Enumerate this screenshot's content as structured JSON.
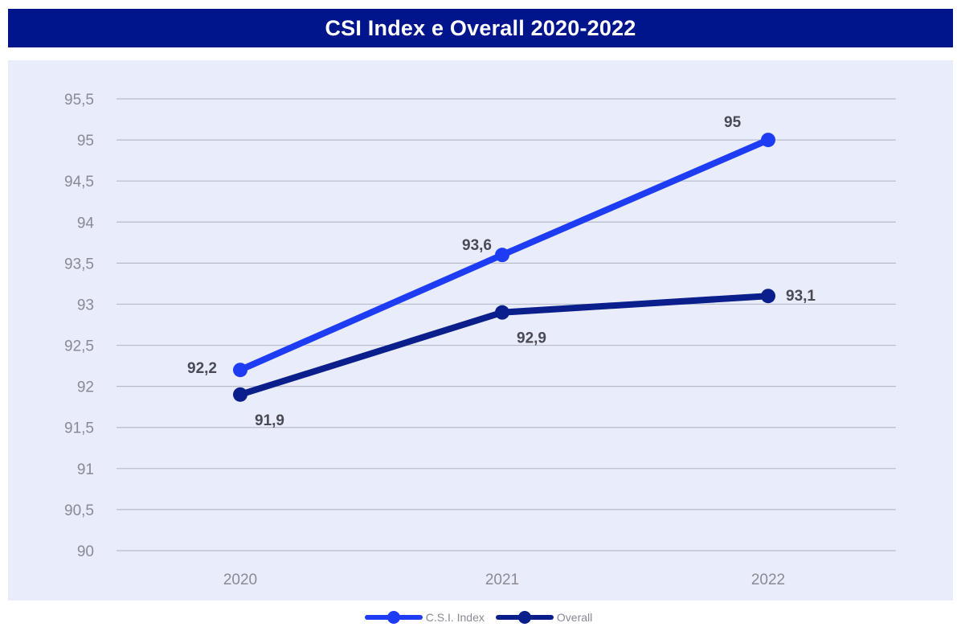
{
  "chart_data": {
    "type": "line",
    "title": "CSI Index e Overall 2020-2022",
    "categories": [
      "2020",
      "2021",
      "2022"
    ],
    "series": [
      {
        "name": "C.S.I. Index",
        "values": [
          92.2,
          93.6,
          95
        ],
        "labels": [
          "92,2",
          "93,6",
          "95"
        ],
        "color": "#1f3cf5"
      },
      {
        "name": "Overall",
        "values": [
          91.9,
          92.9,
          93.1
        ],
        "labels": [
          "91,9",
          "92,9",
          "93,1"
        ],
        "color": "#0a1e8c"
      }
    ],
    "ylim": [
      90,
      95.5
    ],
    "yticks": [
      90,
      90.5,
      91,
      91.5,
      92,
      92.5,
      93,
      93.5,
      94,
      94.5,
      95,
      95.5
    ],
    "ytick_labels": [
      "90",
      "90,5",
      "91",
      "91,5",
      "92",
      "92,5",
      "93",
      "93,5",
      "94",
      "94,5",
      "95",
      "95,5"
    ],
    "grid": true,
    "legend": "bottom",
    "colors": {
      "title_background": "#00148c",
      "plot_background": "#e8ecfb",
      "gridline": "#b8bcc8"
    }
  }
}
